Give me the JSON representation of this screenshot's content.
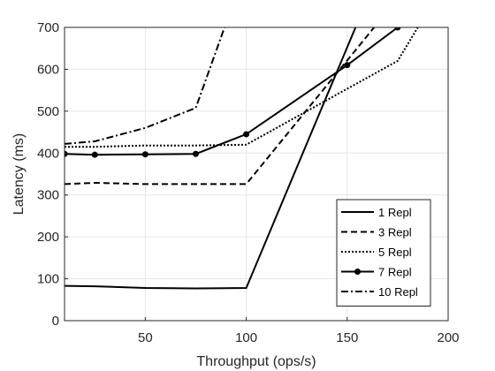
{
  "chart_data": {
    "type": "line",
    "xlabel": "Throughput (ops/s)",
    "ylabel": "Latency (ms)",
    "xlim": [
      10,
      200
    ],
    "ylim": [
      0,
      700
    ],
    "xticks": [
      50,
      100,
      150,
      200
    ],
    "yticks": [
      0,
      100,
      200,
      300,
      400,
      500,
      600,
      700
    ],
    "grid": true,
    "legend_position": "bottom-right",
    "series": [
      {
        "name": "1 Repl",
        "dash": "solid",
        "marker": "none",
        "x": [
          10,
          25,
          50,
          75,
          100,
          155,
          175
        ],
        "y": [
          83,
          82,
          78,
          77,
          78,
          710,
          700
        ]
      },
      {
        "name": "3 Repl",
        "dash": "dashed",
        "marker": "none",
        "x": [
          10,
          25,
          50,
          75,
          100,
          165
        ],
        "y": [
          326,
          329,
          326,
          326,
          326,
          710
        ]
      },
      {
        "name": "5 Repl",
        "dash": "dotted",
        "marker": "none",
        "x": [
          10,
          25,
          50,
          75,
          100,
          175,
          185
        ],
        "y": [
          415,
          415,
          418,
          418,
          420,
          620,
          700
        ]
      },
      {
        "name": "7 Repl",
        "dash": "solid",
        "marker": "circle",
        "x": [
          10,
          25,
          50,
          75,
          100,
          150,
          175
        ],
        "y": [
          398,
          396,
          397,
          398,
          445,
          610,
          700
        ]
      },
      {
        "name": "10 Repl",
        "dash": "dashdot",
        "marker": "none",
        "x": [
          10,
          25,
          50,
          75,
          90
        ],
        "y": [
          422,
          428,
          460,
          508,
          710
        ]
      }
    ]
  }
}
